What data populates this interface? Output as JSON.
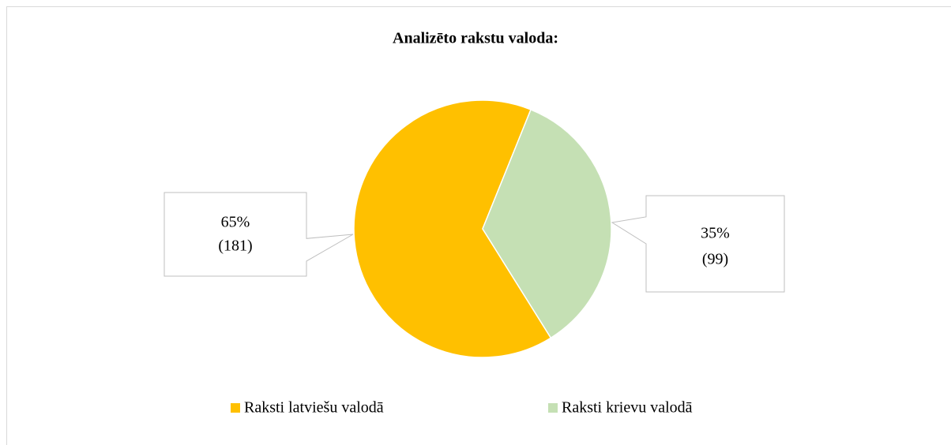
{
  "chart_data": {
    "type": "pie",
    "title": "Analizēto rakstu valoda:",
    "categories": [
      "Raksti latviešu valodā",
      "Raksti krievu valodā"
    ],
    "values": [
      65,
      35
    ],
    "value_labels": [
      "65%",
      "35%"
    ],
    "counts": [
      181,
      99
    ],
    "count_labels": [
      "(181)",
      "(99)"
    ],
    "colors": [
      "#FFC000",
      "#C5E0B4"
    ],
    "legend": "bottom"
  }
}
